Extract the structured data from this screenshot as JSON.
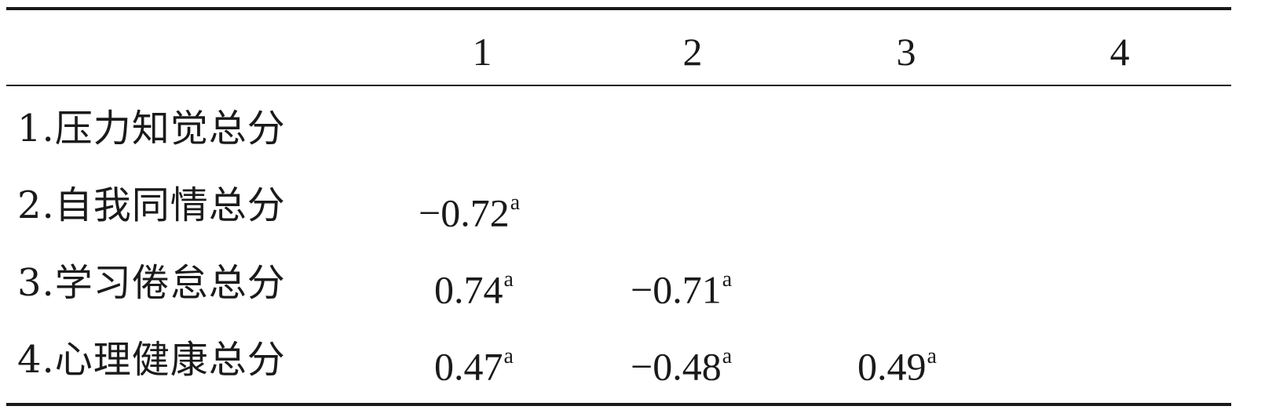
{
  "table": {
    "columns": [
      "1",
      "2",
      "3",
      "4"
    ],
    "rows": [
      {
        "label": "1.压力知觉总分",
        "cells": []
      },
      {
        "label": "2.自我同情总分",
        "cells": [
          {
            "value": "−0.72",
            "sup": "a"
          }
        ]
      },
      {
        "label": "3.学习倦怠总分",
        "cells": [
          {
            "value": "0.74",
            "sup": "a"
          },
          {
            "value": "−0.71",
            "sup": "a"
          }
        ]
      },
      {
        "label": "4.心理健康总分",
        "cells": [
          {
            "value": "0.47",
            "sup": "a"
          },
          {
            "value": "−0.48",
            "sup": "a"
          },
          {
            "value": "0.49",
            "sup": "a"
          }
        ]
      }
    ]
  }
}
